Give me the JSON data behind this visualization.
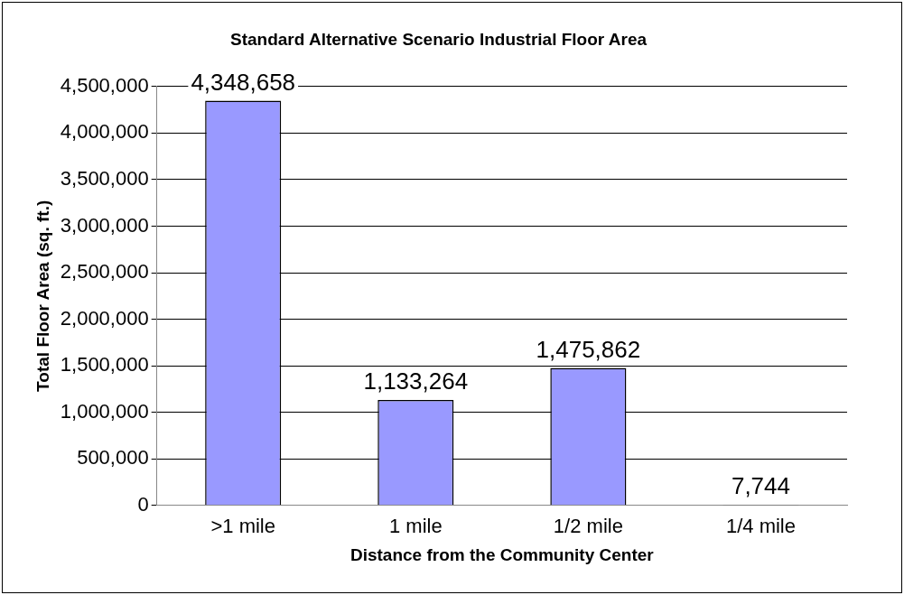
{
  "chart_data": {
    "type": "bar",
    "title": "Standard Alternative Scenario Industrial Floor Area",
    "xlabel": "Distance from the Community Center",
    "ylabel": "Total Floor Area (sq. ft.)",
    "categories": [
      ">1 mile",
      "1 mile",
      "1/2 mile",
      "1/4 mile"
    ],
    "values": [
      4348658,
      1133264,
      1475862,
      7744
    ],
    "value_labels": [
      "4,348,658",
      "1,133,264",
      "1,475,862",
      "7,744"
    ],
    "color": "#9999ff",
    "ylim": [
      0,
      4500000
    ],
    "yticks": [
      {
        "value": 0,
        "label": "0"
      },
      {
        "value": 500000,
        "label": "500,000"
      },
      {
        "value": 1000000,
        "label": "1,000,000"
      },
      {
        "value": 1500000,
        "label": "1,500,000"
      },
      {
        "value": 2000000,
        "label": "2,000,000"
      },
      {
        "value": 2500000,
        "label": "2,500,000"
      },
      {
        "value": 3000000,
        "label": "3,000,000"
      },
      {
        "value": 3500000,
        "label": "3,500,000"
      },
      {
        "value": 4000000,
        "label": "4,000,000"
      },
      {
        "value": 4500000,
        "label": "4,500,000"
      }
    ],
    "grid": "y",
    "legend": false
  }
}
